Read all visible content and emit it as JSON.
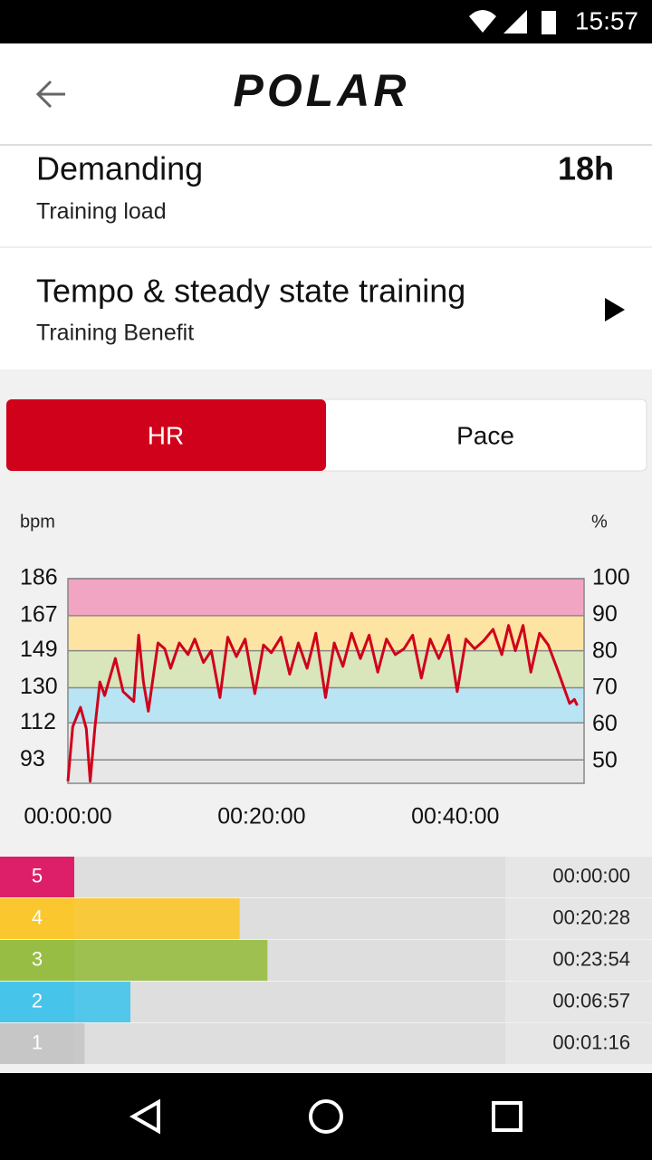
{
  "status_bar": {
    "time": "15:57"
  },
  "header": {
    "logo": "POLAR"
  },
  "training_load": {
    "title": "Demanding",
    "value": "18h",
    "label": "Training load"
  },
  "training_benefit": {
    "title": "Tempo & steady state training",
    "label": "Training Benefit"
  },
  "tabs": [
    {
      "label": "HR",
      "selected": true
    },
    {
      "label": "Pace",
      "selected": false
    }
  ],
  "chart_data": [
    {
      "type": "line",
      "y_label": "bpm",
      "y2_label": "%",
      "color": "#d0021b",
      "grid": true,
      "zone_colors": [
        "#f1a5c2",
        "#fde4a3",
        "#d9e5bb",
        "#b8e4f4",
        "#e7e7e7"
      ],
      "x": [
        0,
        0.5,
        1.3,
        1.9,
        2.3,
        2.8,
        3.3,
        3.8,
        4.9,
        5.7,
        6.8,
        7.3,
        7.8,
        8.3,
        9.3,
        10,
        10.6,
        11.5,
        12.4,
        13.1,
        14,
        14.8,
        15.7,
        16.5,
        17.4,
        18.3,
        19.3,
        20.2,
        21,
        22,
        22.9,
        23.8,
        24.7,
        25.6,
        26.6,
        27.5,
        28.4,
        29.3,
        30.2,
        31.1,
        32,
        32.9,
        33.8,
        34.7,
        35.6,
        36.5,
        37.4,
        38.3,
        39.3,
        40.2,
        41.1,
        42,
        42.9,
        43.9,
        44.8,
        45.5,
        46.2,
        47,
        47.8,
        48.7,
        49.6,
        50.5,
        51.3,
        51.8,
        52.3,
        52.6
      ],
      "values": [
        82,
        110,
        120,
        109,
        82,
        110,
        133,
        126,
        145,
        128,
        123,
        157,
        133,
        118,
        153,
        150,
        140,
        153,
        147,
        155,
        143,
        149,
        125,
        156,
        146,
        155,
        127,
        152,
        148,
        156,
        137,
        153,
        140,
        158,
        125,
        153,
        141,
        158,
        145,
        157,
        138,
        155,
        147,
        150,
        157,
        135,
        155,
        145,
        157,
        128,
        155,
        150,
        154,
        160,
        147,
        162,
        149,
        162,
        138,
        158,
        152,
        140,
        129,
        122,
        124,
        121
      ],
      "xlim": [
        0,
        53.3
      ],
      "xticks": [
        {
          "value": 0,
          "label": "00:00:00"
        },
        {
          "value": 20,
          "label": "00:20:00"
        },
        {
          "value": 40,
          "label": "00:40:00"
        }
      ],
      "ylim": [
        81,
        186
      ],
      "yticks": [
        186,
        167,
        149,
        130,
        112,
        93
      ],
      "y2lim": [
        44,
        100
      ],
      "y2ticks": [
        100,
        90,
        80,
        70,
        60,
        50
      ]
    },
    {
      "type": "bar",
      "orientation": "horizontal",
      "categories": [
        "5",
        "4",
        "3",
        "2",
        "1"
      ],
      "values": [
        0,
        1228,
        1434,
        417,
        76
      ],
      "value_labels": [
        "00:00:00",
        "00:20:28",
        "00:23:54",
        "00:06:57",
        "00:01:16"
      ],
      "colors": [
        "#dc1f68",
        "#fbc72e",
        "#97bd44",
        "#46c4ea",
        "#c6c6c6"
      ],
      "xlim": [
        0,
        3200
      ]
    }
  ]
}
